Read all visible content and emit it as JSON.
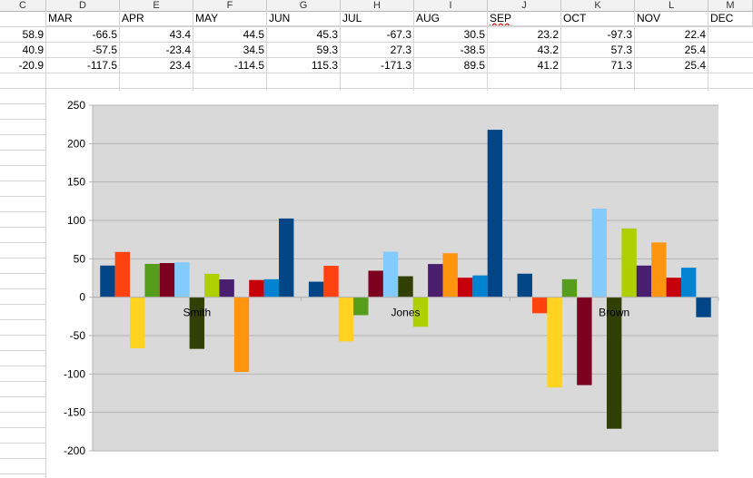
{
  "spreadsheet": {
    "column_letters": [
      "C",
      "D",
      "E",
      "F",
      "G",
      "H",
      "I",
      "J",
      "K",
      "L",
      "M"
    ],
    "months_header": [
      "MAR",
      "APR",
      "MAY",
      "JUN",
      "JUL",
      "AUG",
      "SEP",
      "OCT",
      "NOV",
      "DEC"
    ],
    "rows": [
      [
        "58.9",
        "-66.5",
        "43.4",
        "44.5",
        "45.3",
        "-67.3",
        "30.5",
        "23.2",
        "-97.3",
        "22.4"
      ],
      [
        "40.9",
        "-57.5",
        "-23.4",
        "34.5",
        "59.3",
        "27.3",
        "-38.5",
        "43.2",
        "57.3",
        "25.4"
      ],
      [
        "-20.9",
        "-117.5",
        "23.4",
        "-114.5",
        "115.3",
        "-171.3",
        "89.5",
        "41.2",
        "71.3",
        "25.4"
      ]
    ]
  },
  "chart_data": {
    "type": "bar",
    "categories": [
      "Smith",
      "Jones",
      "Brown"
    ],
    "series": [
      {
        "values": [
          41.2,
          20.2,
          30.6
        ],
        "color": "#004586"
      },
      {
        "values": [
          58.9,
          40.9,
          -20.9
        ],
        "color": "#ff420e"
      },
      {
        "values": [
          -66.5,
          -57.5,
          -117.5
        ],
        "color": "#ffd320"
      },
      {
        "values": [
          43.4,
          -23.4,
          23.4
        ],
        "color": "#579d1c"
      },
      {
        "values": [
          44.5,
          34.5,
          -114.5
        ],
        "color": "#7e0021"
      },
      {
        "values": [
          45.3,
          59.3,
          115.3
        ],
        "color": "#83caff"
      },
      {
        "values": [
          -67.3,
          27.3,
          -171.3
        ],
        "color": "#314004"
      },
      {
        "values": [
          30.5,
          -38.5,
          89.5
        ],
        "color": "#aecf00"
      },
      {
        "values": [
          23.2,
          43.2,
          41.2
        ],
        "color": "#4b1f6f"
      },
      {
        "values": [
          -97.3,
          57.3,
          71.3
        ],
        "color": "#ff950e"
      },
      {
        "values": [
          22.4,
          25.4,
          25.4
        ],
        "color": "#c5000b"
      },
      {
        "values": [
          23.4,
          28.4,
          38.4
        ],
        "color": "#0084d1"
      },
      {
        "values": [
          102.5,
          218.0,
          -26.0
        ],
        "color": "#004586"
      }
    ],
    "ylim": [
      -200,
      250
    ],
    "yticks": [
      -200,
      -150,
      -100,
      -50,
      0,
      50,
      100,
      150,
      200,
      250
    ],
    "grid": true,
    "legend": "none",
    "plot_background": "#d9d9d9"
  }
}
